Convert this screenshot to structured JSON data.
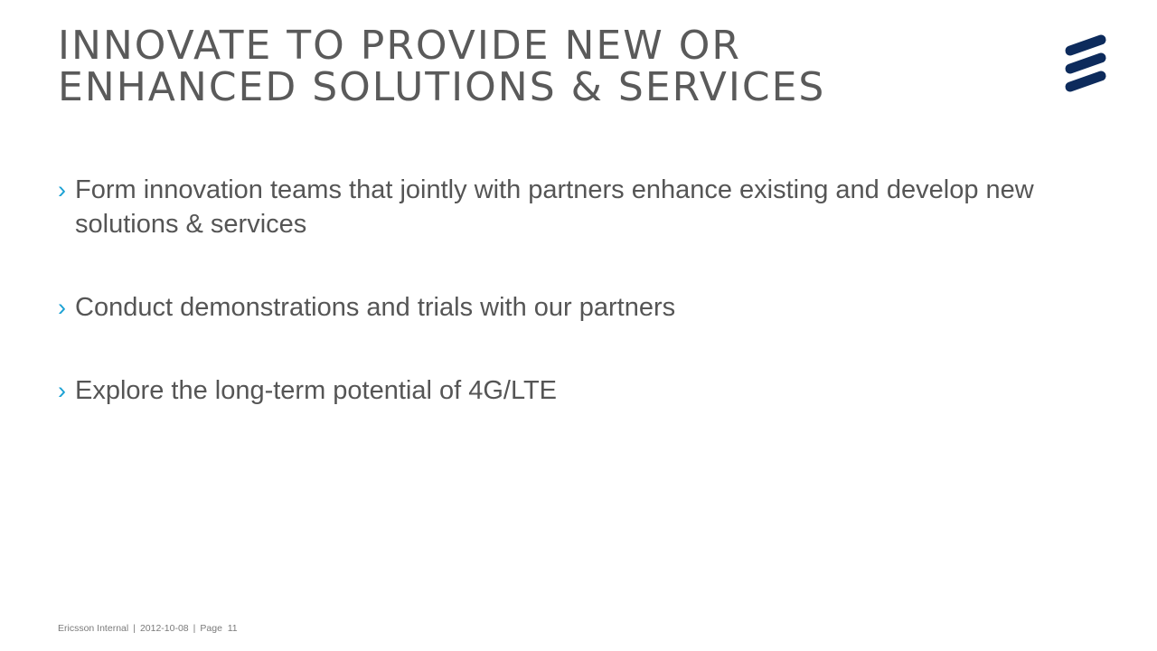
{
  "slide": {
    "title_line1": "Innovate to provide new or",
    "title_line2": "enhanced solutions & services",
    "logo_icon": "ericsson-logo-icon",
    "brand_color": "#0d2b5c",
    "accent_color": "#1ba1d4",
    "bullet_marker": "›",
    "bullets": [
      "Form innovation teams that jointly with partners enhance existing and develop new solutions & services",
      "Conduct demonstrations and trials with our partners",
      "Explore the long-term potential of 4G/LTE"
    ]
  },
  "footer": {
    "classification": "Ericsson Internal",
    "separator": "|",
    "date": "2012-10-08",
    "page_label": "Page  11"
  }
}
